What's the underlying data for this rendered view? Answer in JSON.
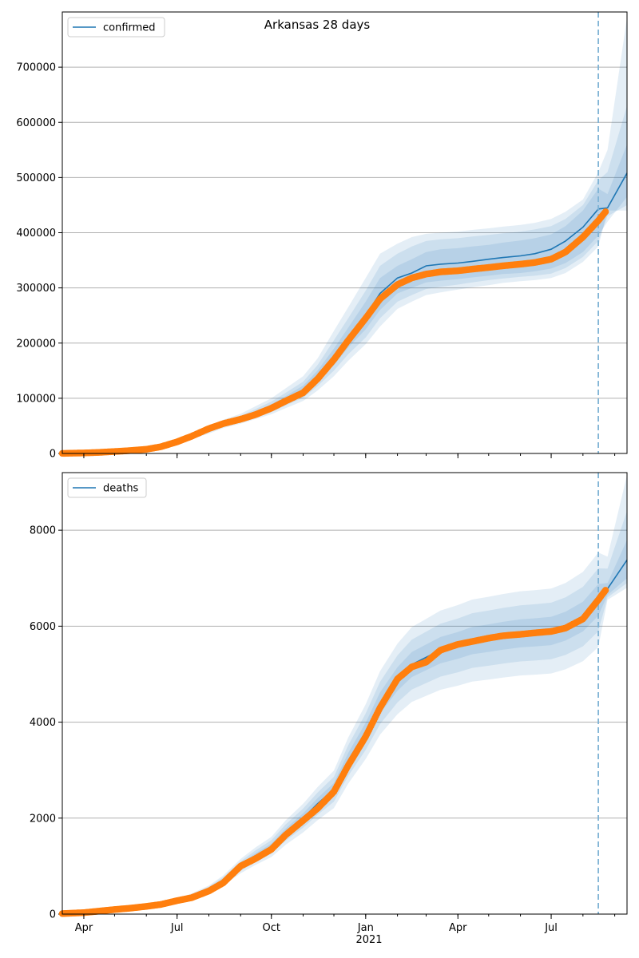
{
  "title": "Arkansas 28 days",
  "colors": {
    "model": "#1f77b4",
    "observed": "#ff7f0e",
    "band": "#1f77b4",
    "forecast_line": "#7fb3d5",
    "grid": "#b0b0b0"
  },
  "x_ticks": [
    {
      "label": "Apr",
      "date": "2020-04-01"
    },
    {
      "label": "Jul",
      "date": "2020-07-01"
    },
    {
      "label": "Oct",
      "date": "2020-10-01"
    },
    {
      "label": "Jan",
      "date": "2021-01-01"
    },
    {
      "label": "Apr",
      "date": "2021-04-01"
    },
    {
      "label": "Jul",
      "date": "2021-07-01"
    }
  ],
  "x_year_label": "2021",
  "chart_data": [
    {
      "type": "line",
      "legend": "confirmed",
      "legend_position": "top-left",
      "grid": "horizontal",
      "xlim": [
        "2020-03-11",
        "2021-09-13"
      ],
      "ylim": [
        0,
        800000
      ],
      "yticks": [
        0,
        100000,
        200000,
        300000,
        400000,
        500000,
        600000,
        700000
      ],
      "forecast_start": "2021-08-16",
      "model": {
        "dates": [
          "2020-03-11",
          "2020-04-15",
          "2020-05-15",
          "2020-06-15",
          "2020-07-01",
          "2020-07-15",
          "2020-08-01",
          "2020-08-15",
          "2020-09-01",
          "2020-09-15",
          "2020-10-01",
          "2020-10-15",
          "2020-11-01",
          "2020-11-15",
          "2020-12-01",
          "2020-12-15",
          "2021-01-01",
          "2021-01-15",
          "2021-02-01",
          "2021-02-15",
          "2021-03-01",
          "2021-03-15",
          "2021-04-01",
          "2021-04-15",
          "2021-05-01",
          "2021-05-15",
          "2021-06-01",
          "2021-06-15",
          "2021-07-01",
          "2021-07-15",
          "2021-08-01",
          "2021-08-16",
          "2021-08-25",
          "2021-09-13"
        ],
        "values": [
          1000,
          3000,
          6500,
          14000,
          21000,
          30000,
          42000,
          53000,
          62000,
          72000,
          84000,
          98000,
          115000,
          140000,
          175000,
          210000,
          250000,
          290000,
          318000,
          327000,
          340000,
          343000,
          345000,
          348000,
          352000,
          355000,
          358000,
          362000,
          370000,
          385000,
          410000,
          443000,
          445000,
          508000
        ],
        "bands": [
          {
            "lower": [
              1000,
              3000,
              6500,
              13500,
              20000,
              28500,
              40000,
              50500,
              59000,
              68000,
              79000,
              92000,
              107000,
              130000,
              160000,
              192000,
              225000,
              260000,
              290000,
              300000,
              310000,
              313000,
              316000,
              319000,
              322000,
              325000,
              327000,
              330000,
              335000,
              345000,
              365000,
              395000,
              420000,
              465000
            ],
            "upper": [
              1000,
              3000,
              6500,
              14500,
              22000,
              31500,
              44000,
              55500,
              65000,
              76000,
              89000,
              104000,
              123000,
              150000,
              190000,
              228000,
              275000,
              318000,
              340000,
              352000,
              365000,
              370000,
              372000,
              375000,
              378000,
              382000,
              386000,
              390000,
              397000,
              412000,
              440000,
              480000,
              470000,
              560000
            ]
          },
          {
            "lower": [
              1000,
              3000,
              6500,
              13000,
              19000,
              27000,
              38000,
              48500,
              57000,
              65000,
              75000,
              87000,
              101000,
              122000,
              150000,
              180000,
              210000,
              245000,
              275000,
              287000,
              298000,
              302000,
              306000,
              310000,
              314000,
              317000,
              320000,
              322000,
              326000,
              336000,
              356000,
              385000,
              430000,
              450000
            ],
            "upper": [
              1000,
              3000,
              6500,
              15000,
              23000,
              33000,
              46000,
              58000,
              68000,
              80000,
              94000,
              110000,
              130000,
              160000,
              205000,
              245000,
              295000,
              340000,
              362000,
              375000,
              385000,
              388000,
              390000,
              393000,
              396000,
              399000,
              402000,
              406000,
              412000,
              425000,
              450000,
              495000,
              510000,
              630000
            ]
          },
          {
            "lower": [
              1000,
              3000,
              6500,
              12500,
              18000,
              25500,
              36000,
              46000,
              54000,
              62000,
              71000,
              82000,
              95000,
              114000,
              140000,
              168000,
              198000,
              230000,
              262000,
              275000,
              287000,
              292000,
              297000,
              301000,
              305000,
              309000,
              312000,
              314000,
              318000,
              327000,
              347000,
              375000,
              440000,
              440000
            ],
            "upper": [
              1000,
              3000,
              6500,
              15500,
              24000,
              34500,
              48000,
              61000,
              72000,
              85000,
              100000,
              118000,
              140000,
              172000,
              222000,
              265000,
              318000,
              362000,
              380000,
              392000,
              398000,
              400000,
              402000,
              405000,
              408000,
              411000,
              414000,
              418000,
              425000,
              438000,
              460000,
              510000,
              550000,
              790000
            ]
          }
        ]
      },
      "observed": {
        "dates": [
          "2020-03-11",
          "2020-04-01",
          "2020-04-15",
          "2020-05-01",
          "2020-05-15",
          "2020-06-01",
          "2020-06-15",
          "2020-07-01",
          "2020-07-15",
          "2020-08-01",
          "2020-08-15",
          "2020-09-01",
          "2020-09-15",
          "2020-10-01",
          "2020-10-15",
          "2020-11-01",
          "2020-11-15",
          "2020-12-01",
          "2020-12-15",
          "2021-01-01",
          "2021-01-15",
          "2021-02-01",
          "2021-02-15",
          "2021-03-01",
          "2021-03-15",
          "2021-04-01",
          "2021-04-15",
          "2021-05-01",
          "2021-05-15",
          "2021-06-01",
          "2021-06-15",
          "2021-07-01",
          "2021-07-15",
          "2021-08-01",
          "2021-08-16",
          "2021-08-23"
        ],
        "values": [
          100,
          900,
          1800,
          3500,
          5000,
          7500,
          12000,
          21000,
          31000,
          45000,
          54000,
          62000,
          70000,
          82000,
          95000,
          110000,
          135000,
          170000,
          205000,
          245000,
          280000,
          306000,
          318000,
          325000,
          329000,
          331000,
          334000,
          337000,
          340000,
          343000,
          346000,
          352000,
          365000,
          392000,
          422000,
          438000
        ]
      }
    },
    {
      "type": "line",
      "legend": "deaths",
      "legend_position": "top-left",
      "grid": "horizontal",
      "xlim": [
        "2020-03-11",
        "2021-09-13"
      ],
      "ylim": [
        0,
        9200
      ],
      "yticks": [
        0,
        2000,
        4000,
        6000,
        8000
      ],
      "forecast_start": "2021-08-16",
      "model": {
        "dates": [
          "2020-03-11",
          "2020-04-15",
          "2020-05-15",
          "2020-06-15",
          "2020-07-01",
          "2020-07-15",
          "2020-08-01",
          "2020-08-15",
          "2020-09-01",
          "2020-09-15",
          "2020-10-01",
          "2020-10-15",
          "2020-11-01",
          "2020-11-15",
          "2020-12-01",
          "2020-12-15",
          "2021-01-01",
          "2021-01-15",
          "2021-02-01",
          "2021-02-15",
          "2021-03-01",
          "2021-03-15",
          "2021-04-01",
          "2021-04-15",
          "2021-05-01",
          "2021-05-15",
          "2021-06-01",
          "2021-06-15",
          "2021-07-01",
          "2021-07-15",
          "2021-08-01",
          "2021-08-16",
          "2021-08-25",
          "2021-09-13"
        ],
        "values": [
          20,
          60,
          120,
          200,
          280,
          370,
          520,
          700,
          1000,
          1200,
          1400,
          1700,
          2000,
          2300,
          2600,
          3200,
          3800,
          4400,
          4900,
          5200,
          5350,
          5500,
          5600,
          5700,
          5750,
          5800,
          5850,
          5870,
          5900,
          6000,
          6200,
          6550,
          6780,
          7380
        ],
        "bands": [
          {
            "lower": [
              20,
              60,
              120,
              190,
              265,
              350,
              495,
              665,
              950,
              1140,
              1330,
              1615,
              1900,
              2185,
              2470,
              3040,
              3610,
              4180,
              4655,
              4940,
              5083,
              5225,
              5320,
              5415,
              5463,
              5510,
              5558,
              5577,
              5605,
              5700,
              5890,
              6220,
              6650,
              7000
            ],
            "upper": [
              20,
              60,
              120,
              210,
              295,
              390,
              545,
              735,
              1050,
              1260,
              1470,
              1785,
              2100,
              2415,
              2730,
              3360,
              3990,
              4620,
              5145,
              5460,
              5618,
              5775,
              5880,
              5985,
              6038,
              6090,
              6143,
              6164,
              6195,
              6300,
              6510,
              6880,
              6900,
              7800
            ]
          },
          {
            "lower": [
              20,
              60,
              120,
              180,
              250,
              330,
              470,
              630,
              900,
              1080,
              1260,
              1530,
              1800,
              2070,
              2340,
              2880,
              3420,
              3960,
              4410,
              4680,
              4815,
              4950,
              5040,
              5130,
              5175,
              5220,
              5265,
              5283,
              5310,
              5400,
              5580,
              5895,
              6600,
              6900
            ],
            "upper": [
              20,
              60,
              120,
              220,
              310,
              410,
              570,
              770,
              1100,
              1320,
              1540,
              1870,
              2200,
              2530,
              2860,
              3520,
              4180,
              4840,
              5390,
              5720,
              5885,
              6050,
              6160,
              6270,
              6325,
              6380,
              6435,
              6457,
              6490,
              6600,
              6820,
              7205,
              7200,
              8400
            ]
          },
          {
            "lower": [
              20,
              60,
              120,
              170,
              235,
              310,
              445,
              595,
              850,
              1020,
              1190,
              1445,
              1700,
              1955,
              2210,
              2720,
              3230,
              3740,
              4165,
              4420,
              4548,
              4675,
              4760,
              4845,
              4888,
              4930,
              4973,
              4990,
              5015,
              5100,
              5270,
              5565,
              6550,
              6800
            ],
            "upper": [
              20,
              60,
              120,
              230,
              325,
              430,
              595,
              805,
              1150,
              1380,
              1610,
              1955,
              2300,
              2645,
              2990,
              3680,
              4370,
              5060,
              5635,
              5980,
              6153,
              6325,
              6440,
              6555,
              6613,
              6670,
              6728,
              6751,
              6785,
              6900,
              7130,
              7535,
              7450,
              9150
            ]
          }
        ]
      },
      "observed": {
        "dates": [
          "2020-03-11",
          "2020-04-01",
          "2020-04-15",
          "2020-05-01",
          "2020-05-15",
          "2020-06-01",
          "2020-06-15",
          "2020-07-01",
          "2020-07-15",
          "2020-08-01",
          "2020-08-15",
          "2020-09-01",
          "2020-09-15",
          "2020-10-01",
          "2020-10-15",
          "2020-11-01",
          "2020-11-15",
          "2020-12-01",
          "2020-12-15",
          "2021-01-01",
          "2021-01-15",
          "2021-02-01",
          "2021-02-15",
          "2021-03-01",
          "2021-03-15",
          "2021-04-01",
          "2021-04-15",
          "2021-05-01",
          "2021-05-15",
          "2021-06-01",
          "2021-06-15",
          "2021-07-01",
          "2021-07-15",
          "2021-08-01",
          "2021-08-16",
          "2021-08-23"
        ],
        "values": [
          10,
          30,
          60,
          95,
          120,
          160,
          200,
          280,
          340,
          480,
          650,
          1000,
          1150,
          1350,
          1650,
          1950,
          2200,
          2550,
          3100,
          3700,
          4300,
          4900,
          5150,
          5250,
          5500,
          5620,
          5680,
          5750,
          5800,
          5830,
          5860,
          5890,
          5960,
          6150,
          6550,
          6750
        ]
      }
    }
  ]
}
